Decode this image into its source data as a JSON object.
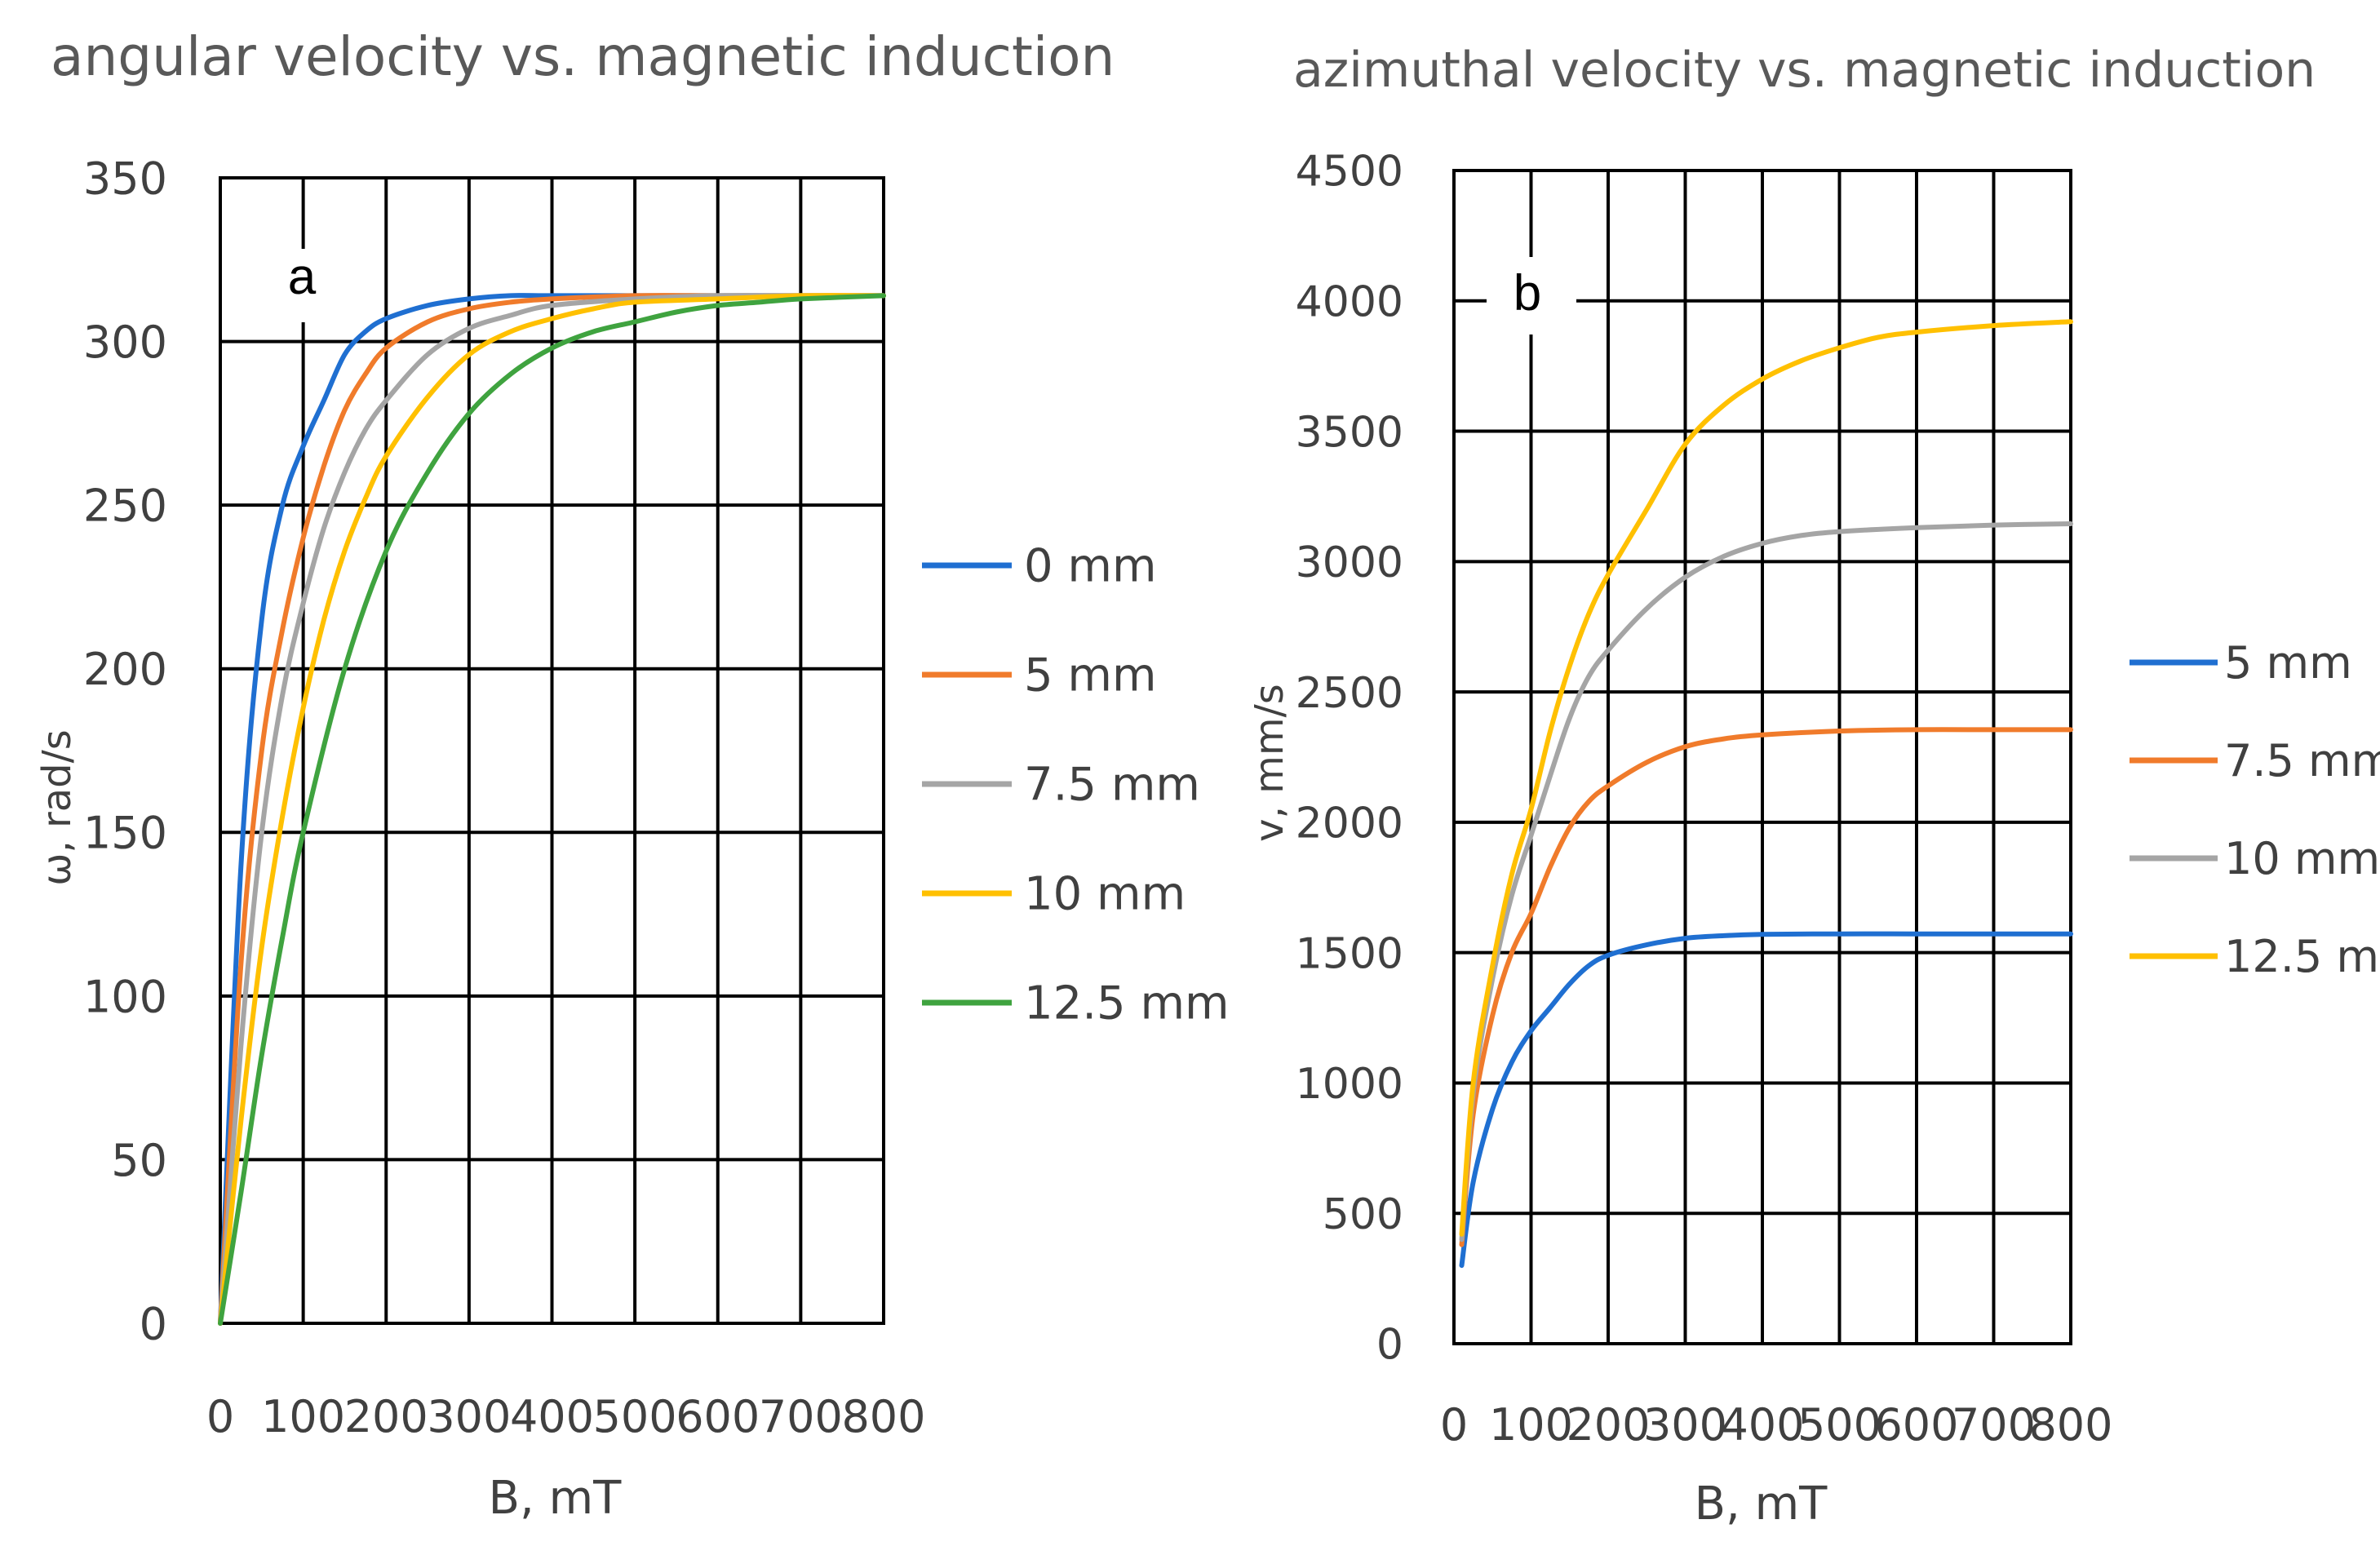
{
  "chart_data": [
    {
      "type": "line",
      "panel_label": "a",
      "title": "angular velocity vs. magnetic induction",
      "xlabel": "B, mT",
      "ylabel": "ω, rad/s",
      "xlim": [
        0,
        800
      ],
      "ylim": [
        0,
        350
      ],
      "x_ticks": [
        0,
        100,
        200,
        300,
        400,
        500,
        600,
        700,
        800
      ],
      "y_ticks": [
        0,
        50,
        100,
        150,
        200,
        250,
        300,
        350
      ],
      "grid": true,
      "legend_position": "right",
      "series": [
        {
          "name": "0 mm",
          "color": "#1f6fd1",
          "x": [
            0,
            25,
            50,
            75,
            100,
            125,
            150,
            175,
            200,
            250,
            300,
            350,
            400,
            500,
            600,
            700,
            800
          ],
          "y": [
            0,
            140,
            215,
            250,
            268,
            282,
            296,
            303,
            307,
            311,
            313,
            314,
            314,
            314,
            314,
            314,
            314
          ]
        },
        {
          "name": "5 mm",
          "color": "#f07b2b",
          "x": [
            0,
            25,
            50,
            75,
            100,
            125,
            150,
            175,
            200,
            250,
            300,
            350,
            400,
            500,
            600,
            700,
            800
          ],
          "y": [
            0,
            110,
            175,
            212,
            240,
            262,
            279,
            290,
            298,
            306,
            310,
            312,
            313,
            314,
            314,
            314,
            314
          ]
        },
        {
          "name": "7.5 mm",
          "color": "#a5a5a5",
          "x": [
            0,
            25,
            50,
            75,
            100,
            125,
            150,
            175,
            200,
            250,
            300,
            350,
            400,
            500,
            600,
            700,
            800
          ],
          "y": [
            0,
            85,
            150,
            192,
            220,
            243,
            260,
            273,
            282,
            296,
            304,
            308,
            311,
            313,
            314,
            314,
            314
          ]
        },
        {
          "name": "10 mm",
          "color": "#ffc000",
          "x": [
            0,
            25,
            50,
            75,
            100,
            125,
            150,
            175,
            200,
            250,
            300,
            350,
            400,
            450,
            500,
            600,
            700,
            800
          ],
          "y": [
            0,
            62,
            115,
            155,
            188,
            215,
            236,
            252,
            265,
            283,
            296,
            303,
            307,
            310,
            312,
            313,
            314,
            314
          ]
        },
        {
          "name": "12.5 mm",
          "color": "#3fa33f",
          "x": [
            0,
            25,
            50,
            75,
            100,
            150,
            200,
            250,
            300,
            350,
            400,
            450,
            500,
            550,
            600,
            650,
            700,
            800
          ],
          "y": [
            0,
            40,
            82,
            118,
            150,
            200,
            236,
            260,
            278,
            290,
            298,
            303,
            306,
            309,
            311,
            312,
            313,
            314
          ]
        }
      ]
    },
    {
      "type": "line",
      "panel_label": "b",
      "title": "azimuthal velocity vs. magnetic induction",
      "xlabel": "B, mT",
      "ylabel": "v, mm/s",
      "xlim": [
        0,
        800
      ],
      "ylim": [
        0,
        4500
      ],
      "x_ticks": [
        0,
        100,
        200,
        300,
        400,
        500,
        600,
        700,
        800
      ],
      "y_ticks": [
        0,
        500,
        1000,
        1500,
        2000,
        2500,
        3000,
        3500,
        4000,
        4500
      ],
      "grid": true,
      "legend_position": "right",
      "series": [
        {
          "name": "5 mm",
          "color": "#1f6fd1",
          "x": [
            10,
            25,
            50,
            75,
            100,
            125,
            150,
            175,
            200,
            250,
            300,
            350,
            400,
            500,
            600,
            700,
            800
          ],
          "y": [
            300,
            620,
            900,
            1080,
            1200,
            1290,
            1380,
            1450,
            1490,
            1530,
            1555,
            1565,
            1570,
            1572,
            1572,
            1572,
            1572
          ]
        },
        {
          "name": "7.5 mm",
          "color": "#f07b2b",
          "x": [
            10,
            25,
            50,
            75,
            100,
            125,
            150,
            175,
            200,
            250,
            300,
            350,
            400,
            500,
            600,
            700,
            800
          ],
          "y": [
            380,
            880,
            1260,
            1500,
            1650,
            1830,
            1980,
            2080,
            2140,
            2230,
            2290,
            2320,
            2335,
            2350,
            2355,
            2355,
            2355
          ]
        },
        {
          "name": "10 mm",
          "color": "#a5a5a5",
          "x": [
            10,
            25,
            50,
            75,
            100,
            125,
            150,
            175,
            200,
            250,
            300,
            350,
            400,
            450,
            500,
            600,
            700,
            800
          ],
          "y": [
            400,
            960,
            1400,
            1720,
            1950,
            2180,
            2400,
            2560,
            2660,
            2820,
            2940,
            3020,
            3070,
            3100,
            3115,
            3130,
            3140,
            3145
          ]
        },
        {
          "name": "12.5 mm",
          "color": "#ffc000",
          "x": [
            10,
            25,
            50,
            75,
            100,
            125,
            150,
            175,
            200,
            250,
            300,
            350,
            400,
            450,
            500,
            550,
            600,
            700,
            800
          ],
          "y": [
            420,
            1000,
            1450,
            1800,
            2050,
            2350,
            2600,
            2800,
            2950,
            3200,
            3450,
            3600,
            3700,
            3770,
            3820,
            3860,
            3880,
            3905,
            3920
          ]
        }
      ]
    }
  ]
}
